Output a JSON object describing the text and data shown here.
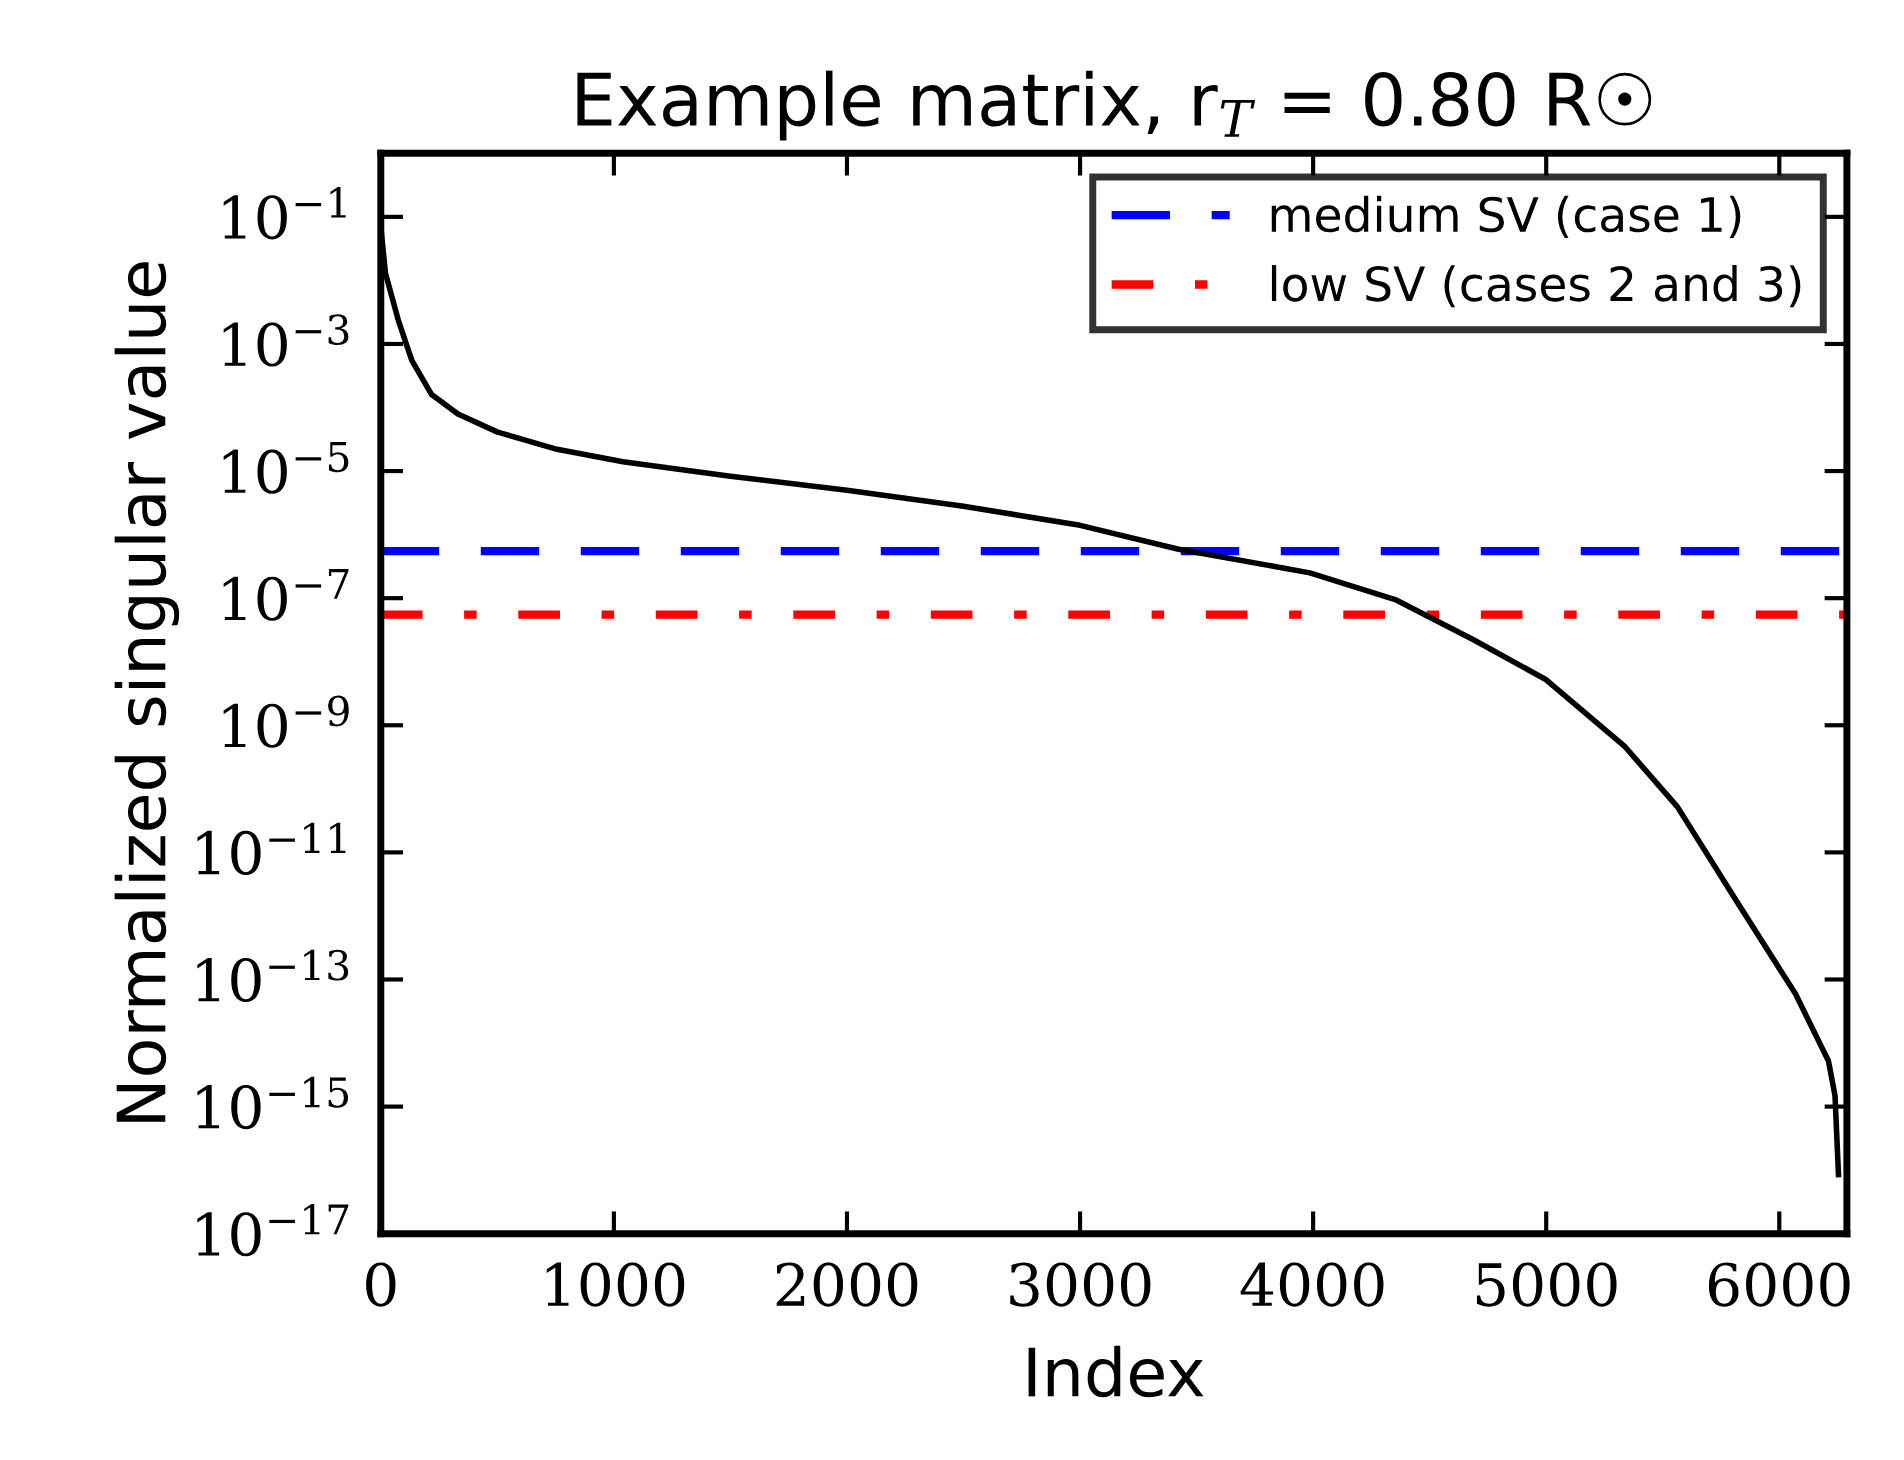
{
  "chart_data": {
    "type": "line",
    "title": "Example matrix, r$_{T}$ = 0.80 R☉",
    "xlabel": "Index",
    "ylabel": "Normalized singular value",
    "log": "y",
    "xlim": [
      0,
      6290
    ],
    "ylim": [
      1e-17,
      1
    ],
    "xticks": [
      0,
      1000,
      2000,
      3000,
      4000,
      5000,
      6000
    ],
    "yticks": [
      {
        "value": 0.1,
        "label": "10$^{−1}$"
      },
      {
        "value": 0.001,
        "label": "10$^{−3}$"
      },
      {
        "value": 1e-05,
        "label": "10$^{−5}$"
      },
      {
        "value": 1e-07,
        "label": "10$^{−7}$"
      },
      {
        "value": 1e-09,
        "label": "10$^{−9}$"
      },
      {
        "value": 1e-11,
        "label": "10$^{−11}$"
      },
      {
        "value": 1e-13,
        "label": "10$^{−13}$"
      },
      {
        "value": 1e-15,
        "label": "10$^{−15}$"
      },
      {
        "value": 1e-17,
        "label": "10$^{−17}$"
      }
    ],
    "grid": false,
    "legend": "top right",
    "marker": "none",
    "line_style": "solid",
    "series": [
      {
        "name": "medium SV (case 1)",
        "type": "line",
        "color": "#0000ff",
        "line_style": "dashed",
        "x": [
          0,
          6290
        ],
        "values": [
          5.5e-07,
          5.5e-07
        ]
      },
      {
        "name": "low SV (cases 2 and 3)",
        "type": "line",
        "color": "#ff0000",
        "line_style": "dashdot",
        "x": [
          0,
          6290
        ],
        "values": [
          5.5e-08,
          5.5e-08
        ]
      },
      {
        "color": "#000000",
        "x": [
          0,
          20,
          76,
          133,
          218,
          331,
          501,
          756,
          1039,
          1500,
          2000,
          2500,
          3000,
          3423,
          3986,
          4352,
          4690,
          5000,
          5338,
          5563,
          5817,
          6070,
          6211,
          6239,
          6254
        ],
        "values": [
          0.069,
          0.013,
          0.0023,
          0.00055,
          0.00016,
          7.9e-05,
          4.1e-05,
          2.2e-05,
          1.4e-05,
          8.3e-06,
          5e-06,
          2.8e-06,
          1.4e-06,
          5.9e-07,
          2.5e-07,
          9.5e-08,
          2.2e-08,
          5.2e-09,
          4.6e-10,
          5.2e-11,
          1.7e-12,
          5.9e-14,
          5.2e-15,
          1.5e-15,
          8.5e-17
        ]
      }
    ]
  }
}
